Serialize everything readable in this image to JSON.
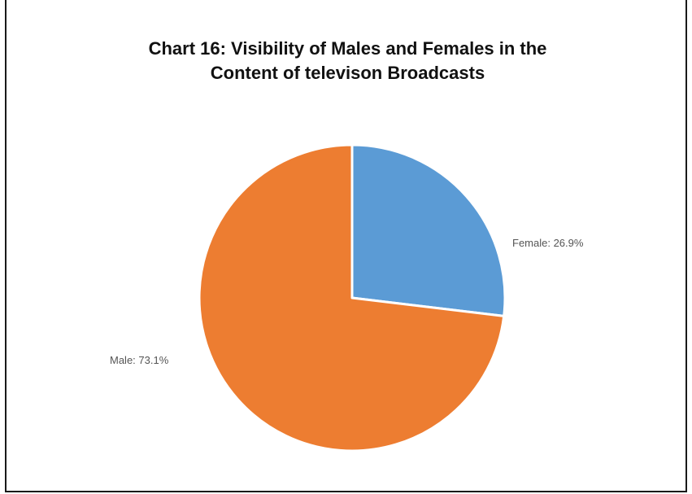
{
  "chart_data": {
    "type": "pie",
    "title_lines": [
      "Chart 16: Visibility of Males and Females in the",
      "Content of televison Broadcasts"
    ],
    "slices": [
      {
        "name": "Female",
        "value": 26.9,
        "label": "Female: 26.9%",
        "color": "#5B9BD5"
      },
      {
        "name": "Male",
        "value": 73.1,
        "label": "Male: 73.1%",
        "color": "#ED7D31"
      }
    ],
    "legend": "none"
  }
}
